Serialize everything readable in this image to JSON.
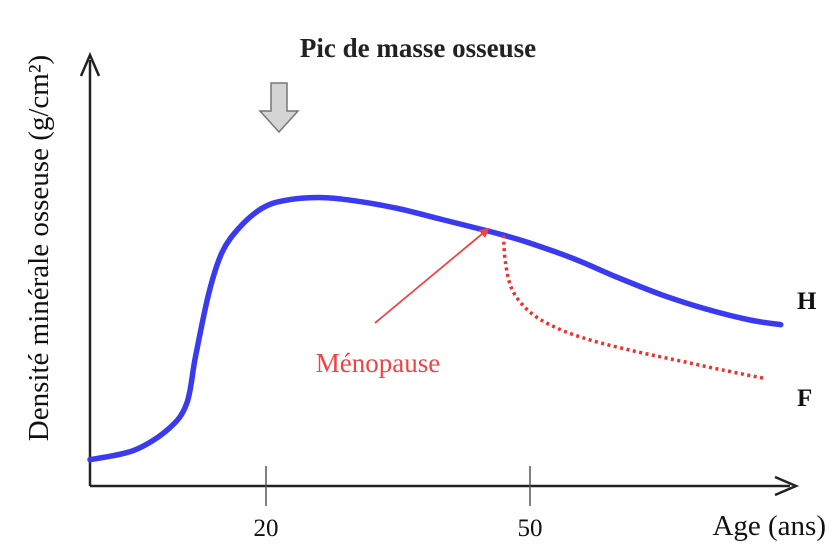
{
  "chart_data": {
    "type": "line",
    "title": "",
    "xlabel": "Age (ans)",
    "ylabel": "Densité minérale osseuse (g/cm²)",
    "xticks": [
      20,
      50
    ],
    "xlim": [
      0,
      80
    ],
    "ylim": [
      0,
      100
    ],
    "grid": false,
    "series": [
      {
        "name": "H",
        "color": "#3a3af0",
        "style": "solid",
        "points": [
          [
            0,
            2
          ],
          [
            5,
            5
          ],
          [
            9,
            12
          ],
          [
            11,
            20
          ],
          [
            12,
            35
          ],
          [
            13.5,
            55
          ],
          [
            15,
            68
          ],
          [
            17,
            76
          ],
          [
            19.5,
            82
          ],
          [
            22,
            84.5
          ],
          [
            26,
            85.5
          ],
          [
            30,
            84.5
          ],
          [
            35,
            82
          ],
          [
            40,
            78.5
          ],
          [
            45,
            75
          ],
          [
            47,
            73.5
          ],
          [
            50,
            71
          ],
          [
            55,
            66
          ],
          [
            60,
            60
          ],
          [
            65,
            54.5
          ],
          [
            70,
            50
          ],
          [
            75,
            46.5
          ],
          [
            78.5,
            45
          ]
        ]
      },
      {
        "name": "F",
        "color": "#ee3030",
        "style": "dotted",
        "points": [
          [
            47,
            73.5
          ],
          [
            47.2,
            65
          ],
          [
            48,
            56
          ],
          [
            50,
            49
          ],
          [
            53,
            44
          ],
          [
            57,
            40
          ],
          [
            62,
            36.5
          ],
          [
            67,
            33.5
          ],
          [
            72,
            30.5
          ],
          [
            76.5,
            28
          ]
        ]
      }
    ],
    "annotations": [
      {
        "text": "Pic de masse osseuse",
        "target": [
          22,
          84.5
        ],
        "marker": "down-arrow"
      },
      {
        "text": "Ménopause",
        "target": [
          45.5,
          68
        ],
        "color": "#ee4444"
      }
    ]
  }
}
